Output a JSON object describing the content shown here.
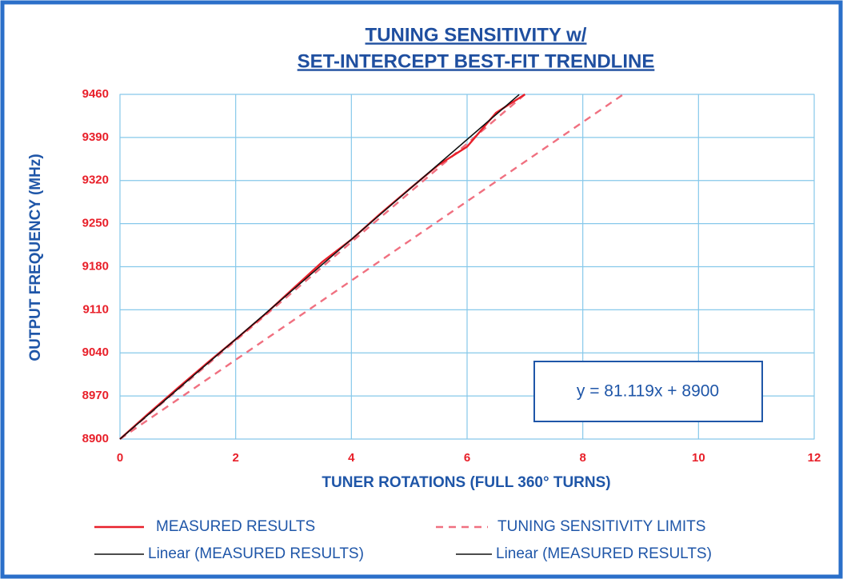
{
  "chart_data": {
    "type": "line",
    "title": [
      "TUNING SENSITIVITY w/",
      "SET-INTERCEPT BEST-FIT TRENDLINE"
    ],
    "xlabel": "TUNER ROTATIONS (FULL 360° TURNS)",
    "ylabel": "OUTPUT FREQUENCY (MHz)",
    "annotation": "y = 81.119x + 8900",
    "xlim": [
      0,
      12
    ],
    "xticks": [
      0,
      2,
      4,
      6,
      8,
      10,
      12
    ],
    "ylim": [
      8900,
      9460
    ],
    "yticks": [
      8900,
      8970,
      9040,
      9110,
      9180,
      9250,
      9320,
      9390,
      9460
    ],
    "grid": true,
    "legend": "bottom",
    "series": [
      {
        "name": "MEASURED RESULTS",
        "color": "#e8202a",
        "style": "solid",
        "x": [
          0,
          0.5,
          1,
          1.5,
          2,
          2.5,
          3,
          3.5,
          4,
          4.5,
          5,
          5.5,
          6,
          6.5,
          7
        ],
        "values": [
          8900,
          8942,
          8983,
          9023,
          9062,
          9102,
          9145,
          9188,
          9224,
          9266,
          9306,
          9345,
          9375,
          9430,
          9460
        ]
      },
      {
        "name": "TUNING SENSITIVITY LIMITS",
        "color": "#f07080",
        "style": "dashed",
        "x": [
          0,
          8.7,
          null,
          0,
          7
        ],
        "values": [
          8900,
          9460,
          null,
          8900,
          9460
        ]
      },
      {
        "name": "Linear (MEASURED RESULTS)",
        "color": "#111111",
        "style": "solid",
        "x": [
          0,
          6.9
        ],
        "values": [
          8900,
          9459.7
        ]
      },
      {
        "name": "Linear (MEASURED RESULTS)",
        "color": "#111111",
        "style": "solid",
        "x": [
          0,
          6.9
        ],
        "values": [
          8900,
          9459.7
        ]
      }
    ]
  }
}
